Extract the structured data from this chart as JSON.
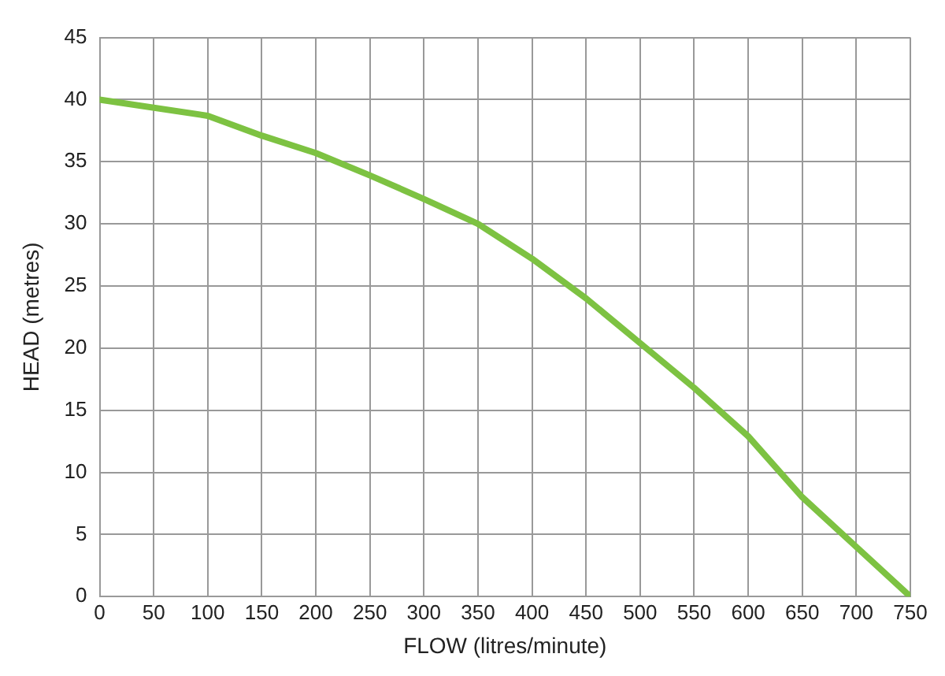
{
  "chart_data": {
    "type": "line",
    "xlabel": "FLOW (litres/minute)",
    "ylabel": "HEAD (metres)",
    "x": [
      0,
      100,
      150,
      200,
      250,
      300,
      350,
      400,
      450,
      500,
      550,
      600,
      650,
      700,
      750
    ],
    "series": [
      {
        "color": "#7dc242",
        "values": [
          40,
          38.7,
          37.1,
          35.7,
          33.9,
          32,
          30,
          27.2,
          24,
          20.4,
          16.8,
          12.9,
          8,
          4,
          0
        ]
      }
    ],
    "xlim": [
      0,
      750
    ],
    "xticks": [
      0,
      50,
      100,
      150,
      200,
      250,
      300,
      350,
      400,
      450,
      500,
      550,
      600,
      650,
      700,
      750
    ],
    "ylim": [
      0,
      45
    ],
    "yticks": [
      0,
      5,
      10,
      15,
      20,
      25,
      30,
      35,
      40,
      45
    ],
    "grid": true,
    "marker": "none",
    "line_style": "solid"
  }
}
